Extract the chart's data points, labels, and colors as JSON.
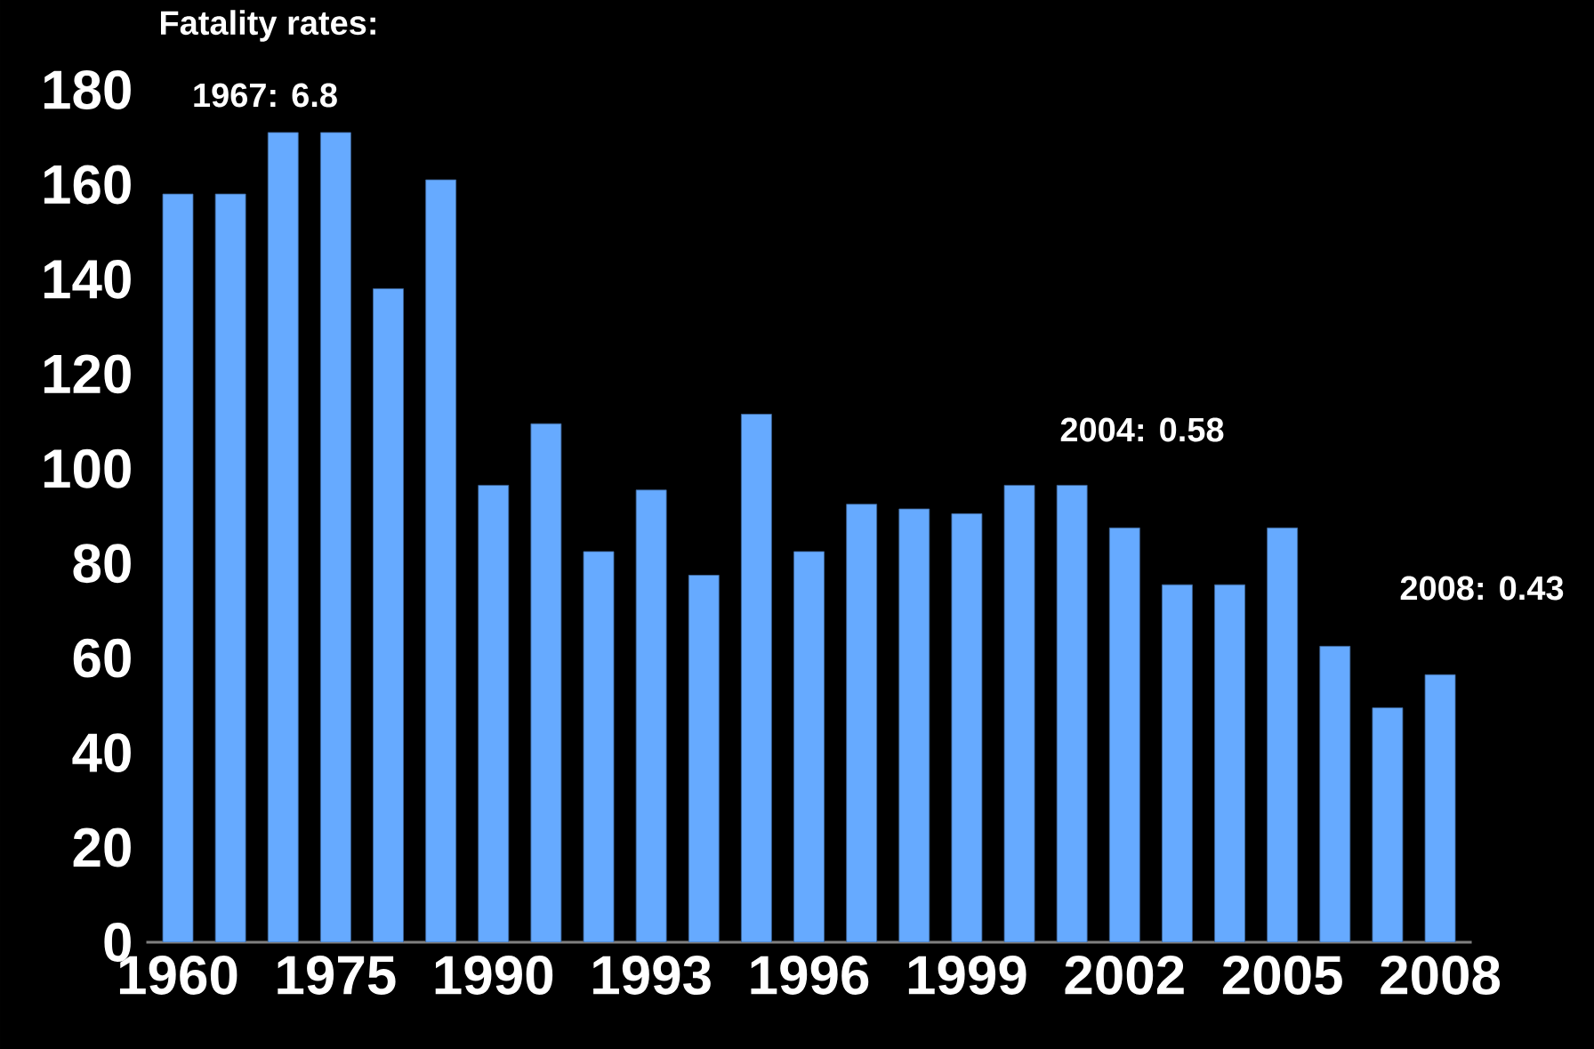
{
  "chart_data": {
    "type": "bar",
    "title": "Fatality rates:",
    "categories": [
      "1960",
      null,
      null,
      "1975",
      null,
      null,
      "1990",
      null,
      null,
      "1993",
      null,
      null,
      "1996",
      null,
      null,
      "1999",
      null,
      null,
      "2002",
      null,
      null,
      "2005",
      null,
      null,
      "2008"
    ],
    "values": [
      158,
      158,
      171,
      171,
      138,
      161,
      96.5,
      109.5,
      82.5,
      95.5,
      77.5,
      111.5,
      82.5,
      92.5,
      91.5,
      90.5,
      96.5,
      96.5,
      87.5,
      75.5,
      75.5,
      87.5,
      62.5,
      49.5,
      56.5
    ],
    "color": "#66aaff",
    "ylim": [
      0,
      180
    ],
    "yticks": [
      0,
      20,
      40,
      60,
      80,
      100,
      120,
      140,
      160,
      180
    ],
    "annotations": [
      "1967: 6.8",
      "2004: 0.58",
      "2008: 0.43"
    ]
  }
}
